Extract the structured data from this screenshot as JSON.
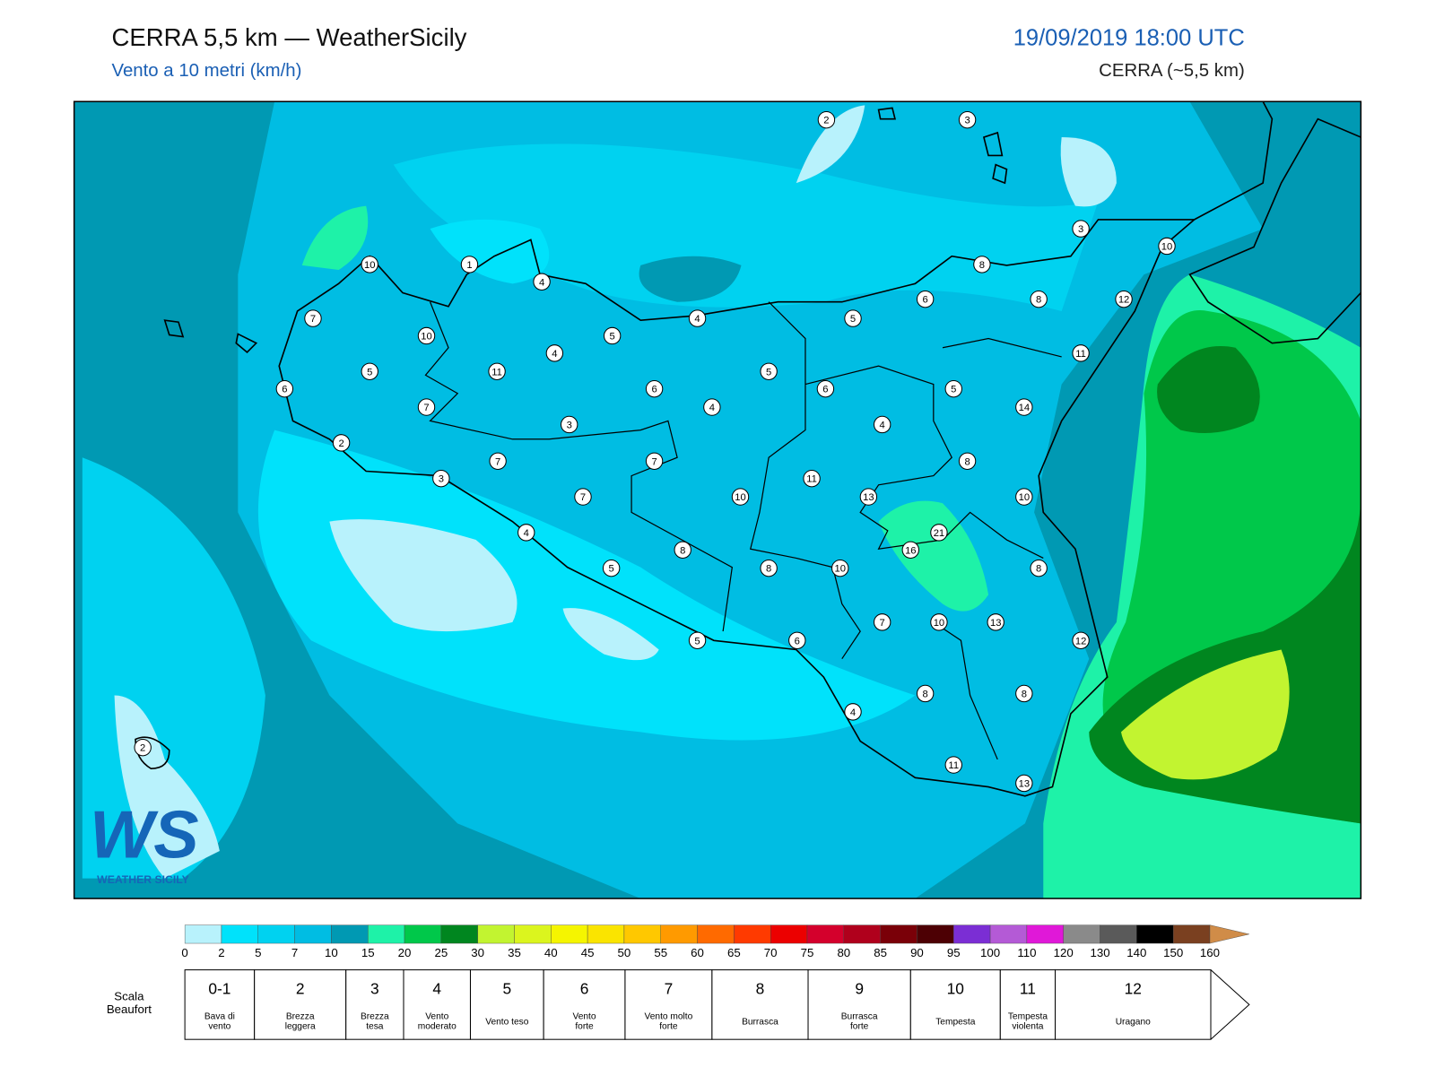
{
  "header": {
    "title": "CERRA 5,5 km — WeatherSicily",
    "subtitle": "Vento a 10 metri (km/h)",
    "datetime": "19/09/2019 18:00 UTC",
    "model": "CERRA (~5,5 km)"
  },
  "stations": [
    2,
    3,
    3,
    10,
    10,
    1,
    4,
    8,
    6,
    8,
    12,
    7,
    4,
    5,
    10,
    5,
    4,
    11,
    5,
    11,
    5,
    6,
    6,
    6,
    5,
    7,
    4,
    14,
    3,
    4,
    2,
    7,
    7,
    8,
    3,
    11,
    7,
    10,
    13,
    10,
    21,
    4,
    16,
    8,
    5,
    8,
    10,
    8,
    7,
    10,
    13,
    5,
    6,
    12,
    8,
    8,
    4,
    2,
    11,
    13
  ],
  "logo": {
    "mark": "WS",
    "text": "WEATHER SICILY"
  },
  "colorbar": {
    "levels": [
      0,
      2,
      5,
      7,
      10,
      15,
      20,
      25,
      30,
      35,
      40,
      45,
      50,
      55,
      60,
      65,
      70,
      75,
      80,
      85,
      90,
      95,
      100,
      110,
      120,
      130,
      140,
      150,
      160
    ],
    "colors": [
      "#b8f2fc",
      "#00e2fb",
      "#00d2f0",
      "#00bde3",
      "#0099b3",
      "#1ef2a8",
      "#00c84a",
      "#00861f",
      "#c2f430",
      "#dbf51e",
      "#f5f500",
      "#fae400",
      "#ffc800",
      "#ff9a00",
      "#ff6a00",
      "#ff3a00",
      "#ec0000",
      "#d4002c",
      "#b0001c",
      "#7a0008",
      "#4d0004",
      "#7b2ed4",
      "#b45ad6",
      "#e018d8",
      "#8a8a8a",
      "#5a5a5a",
      "#000000",
      "#7a4020",
      "#c08040"
    ],
    "over_color": "#d08c48"
  },
  "beaufort": {
    "label": [
      "Scala",
      "Beaufort"
    ],
    "items": [
      {
        "force": "0-1",
        "desc": [
          "Bava di",
          "vento"
        ]
      },
      {
        "force": "2",
        "desc": [
          "Brezza",
          "leggera"
        ]
      },
      {
        "force": "3",
        "desc": [
          "Brezza",
          "tesa"
        ]
      },
      {
        "force": "4",
        "desc": [
          "Vento",
          "moderato"
        ]
      },
      {
        "force": "5",
        "desc": [
          "Vento teso"
        ]
      },
      {
        "force": "6",
        "desc": [
          "Vento",
          "forte"
        ]
      },
      {
        "force": "7",
        "desc": [
          "Vento molto",
          "forte"
        ]
      },
      {
        "force": "8",
        "desc": [
          "Burrasca"
        ]
      },
      {
        "force": "9",
        "desc": [
          "Burrasca",
          "forte"
        ]
      },
      {
        "force": "10",
        "desc": [
          "Tempesta"
        ]
      },
      {
        "force": "11",
        "desc": [
          "Tempesta",
          "violenta"
        ]
      },
      {
        "force": "12",
        "desc": [
          "Uragano"
        ]
      }
    ]
  }
}
